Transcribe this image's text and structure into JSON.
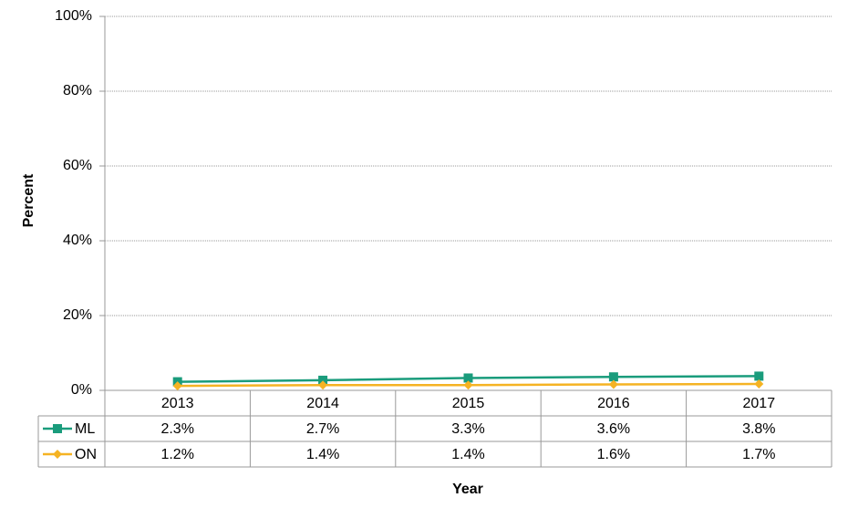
{
  "chart_data": {
    "type": "line",
    "x_label": "Year",
    "y_label": "Percent",
    "categories": [
      "2013",
      "2014",
      "2015",
      "2016",
      "2017"
    ],
    "series": [
      {
        "name": "ML",
        "color": "#1a9c7c",
        "marker": "square",
        "values": [
          2.3,
          2.7,
          3.3,
          3.6,
          3.8
        ],
        "value_labels": [
          "2.3%",
          "2.7%",
          "3.3%",
          "3.6%",
          "3.8%"
        ]
      },
      {
        "name": "ON",
        "color": "#f5b323",
        "marker": "diamond",
        "values": [
          1.2,
          1.4,
          1.4,
          1.6,
          1.7
        ],
        "value_labels": [
          "1.2%",
          "1.4%",
          "1.4%",
          "1.6%",
          "1.7%"
        ]
      }
    ],
    "ylim": [
      0,
      100
    ],
    "yticks": [
      {
        "value": 0,
        "label": "0%"
      },
      {
        "value": 20,
        "label": "20%"
      },
      {
        "value": 40,
        "label": "40%"
      },
      {
        "value": 60,
        "label": "60%"
      },
      {
        "value": 80,
        "label": "80%"
      },
      {
        "value": 100,
        "label": "100%"
      }
    ],
    "grid": true
  }
}
